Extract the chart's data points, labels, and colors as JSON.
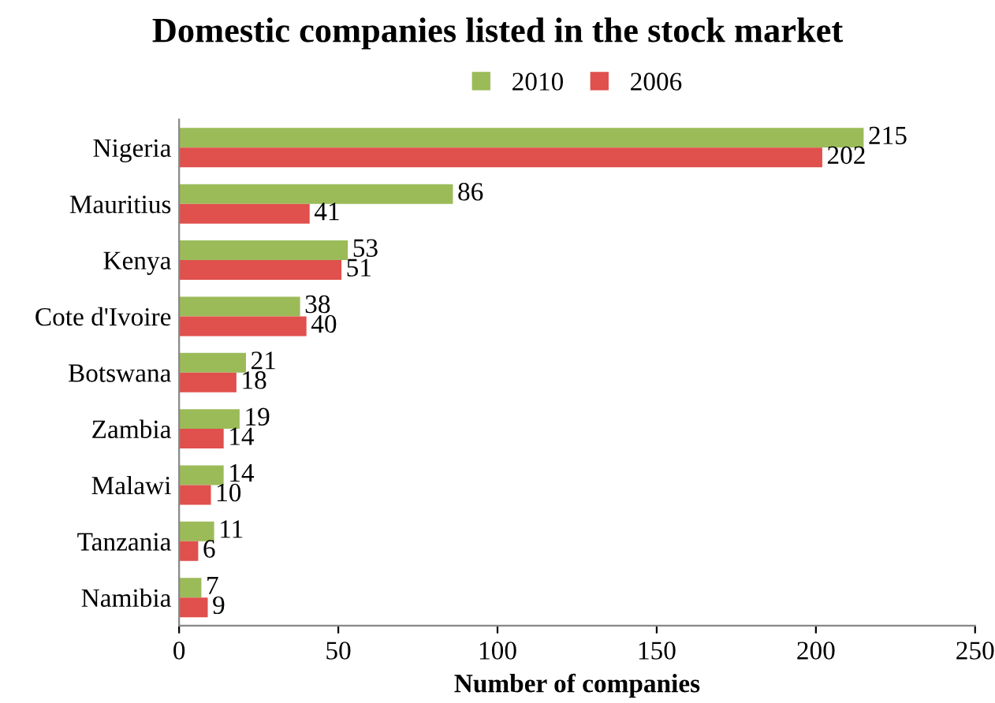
{
  "chart_data": {
    "type": "bar",
    "orientation": "horizontal",
    "title": "Domestic companies listed in the stock market",
    "xlabel": "Number of companies",
    "categories": [
      "Nigeria",
      "Mauritius",
      "Kenya",
      "Cote d'Ivoire",
      "Botswana",
      "Zambia",
      "Malawi",
      "Tanzania",
      "Namibia"
    ],
    "series": [
      {
        "name": "2010",
        "color": "#9bbb59",
        "values": [
          215,
          86,
          53,
          38,
          21,
          19,
          14,
          11,
          7
        ]
      },
      {
        "name": "2006",
        "color": "#e0504d",
        "values": [
          202,
          41,
          51,
          40,
          18,
          14,
          10,
          6,
          9
        ]
      }
    ],
    "xlim": [
      0,
      250
    ],
    "xticks": [
      0,
      50,
      100,
      150,
      200,
      250
    ],
    "grid": false,
    "legend": "top",
    "data_labels": true
  }
}
